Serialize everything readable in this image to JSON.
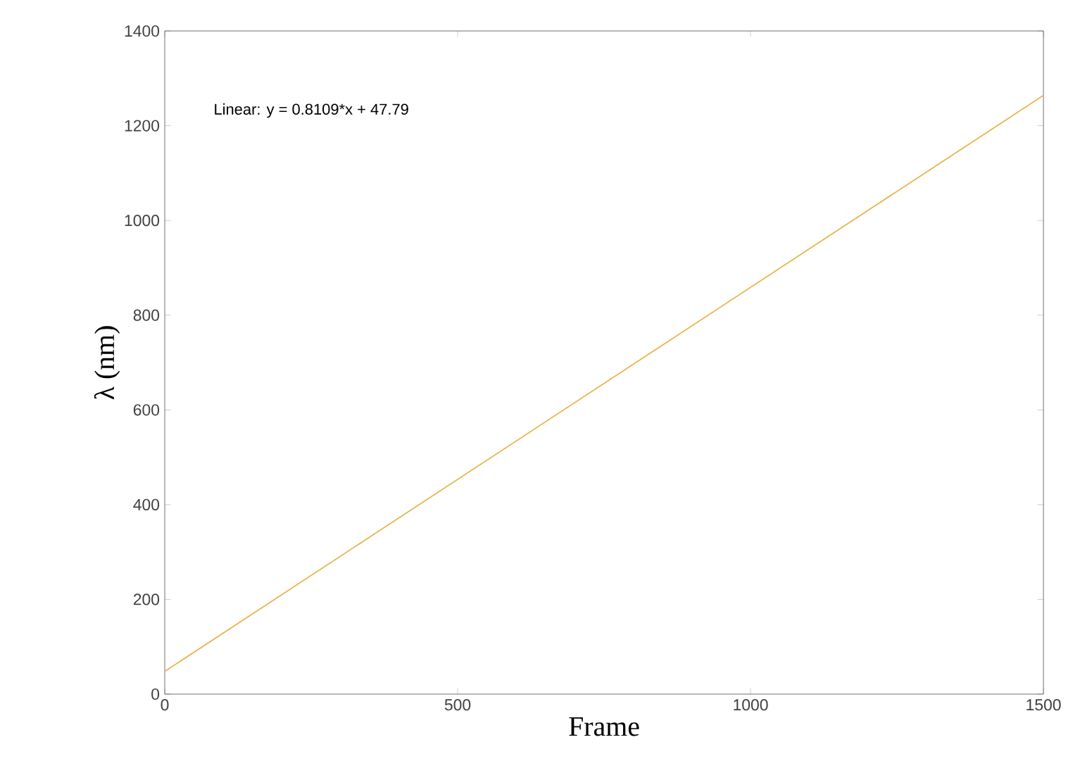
{
  "chart_data": {
    "type": "line",
    "xlabel": "Frame",
    "ylabel": "λ (nm)",
    "annotations": [
      "Linear:  y = 0.8109*x + 47.79"
    ],
    "x": [
      0,
      1500
    ],
    "series": [
      {
        "color": "#e8b44c",
        "values": [
          48,
          1264
        ]
      }
    ],
    "xlim": [
      0,
      1500
    ],
    "ylim": [
      0,
      1400
    ],
    "xticks": [
      0,
      500,
      1000,
      1500
    ],
    "yticks": [
      0,
      200,
      400,
      600,
      800,
      1000,
      1200,
      1400
    ],
    "grid": false
  }
}
